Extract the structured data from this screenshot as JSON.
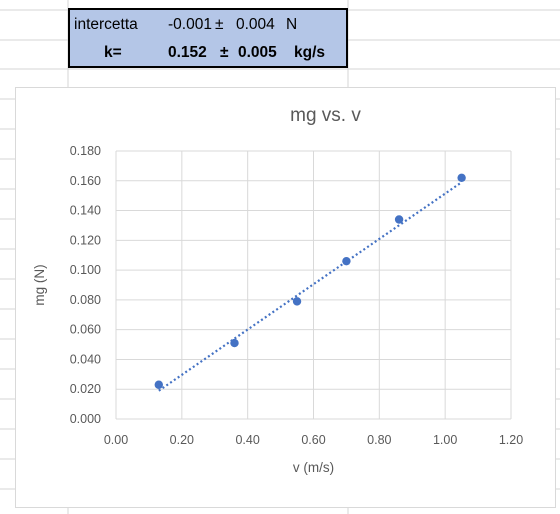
{
  "summary_box": {
    "intercept_label": "intercetta",
    "intercept_value": "-0.001",
    "intercept_pm": "±",
    "intercept_error": "0.004",
    "intercept_unit": "N",
    "k_label": "k=",
    "k_value": "0.152",
    "k_pm": "±",
    "k_error": "0.005",
    "k_unit": "kg/s"
  },
  "colors": {
    "summary_fill": "#b4c6e7",
    "series": "#4472c4"
  },
  "chart_data": {
    "type": "scatter",
    "title": "mg vs. v",
    "xlabel": "v (m/s)",
    "ylabel": "mg (N)",
    "xlim": [
      0,
      1.2
    ],
    "ylim": [
      0,
      0.18
    ],
    "x_ticks": [
      "0.00",
      "0.20",
      "0.40",
      "0.60",
      "0.80",
      "1.00",
      "1.20"
    ],
    "y_ticks": [
      "0.000",
      "0.020",
      "0.040",
      "0.060",
      "0.080",
      "0.100",
      "0.120",
      "0.140",
      "0.160",
      "0.180"
    ],
    "grid": true,
    "legend": "none",
    "series": [
      {
        "x": [
          0.13,
          0.36,
          0.55,
          0.7,
          0.86,
          1.05
        ],
        "y": [
          0.023,
          0.051,
          0.079,
          0.106,
          0.134,
          0.162
        ]
      }
    ],
    "trendline": {
      "type": "linear",
      "style": "dotted",
      "x": [
        0.13,
        1.05
      ],
      "y": [
        0.019,
        0.159
      ]
    }
  }
}
